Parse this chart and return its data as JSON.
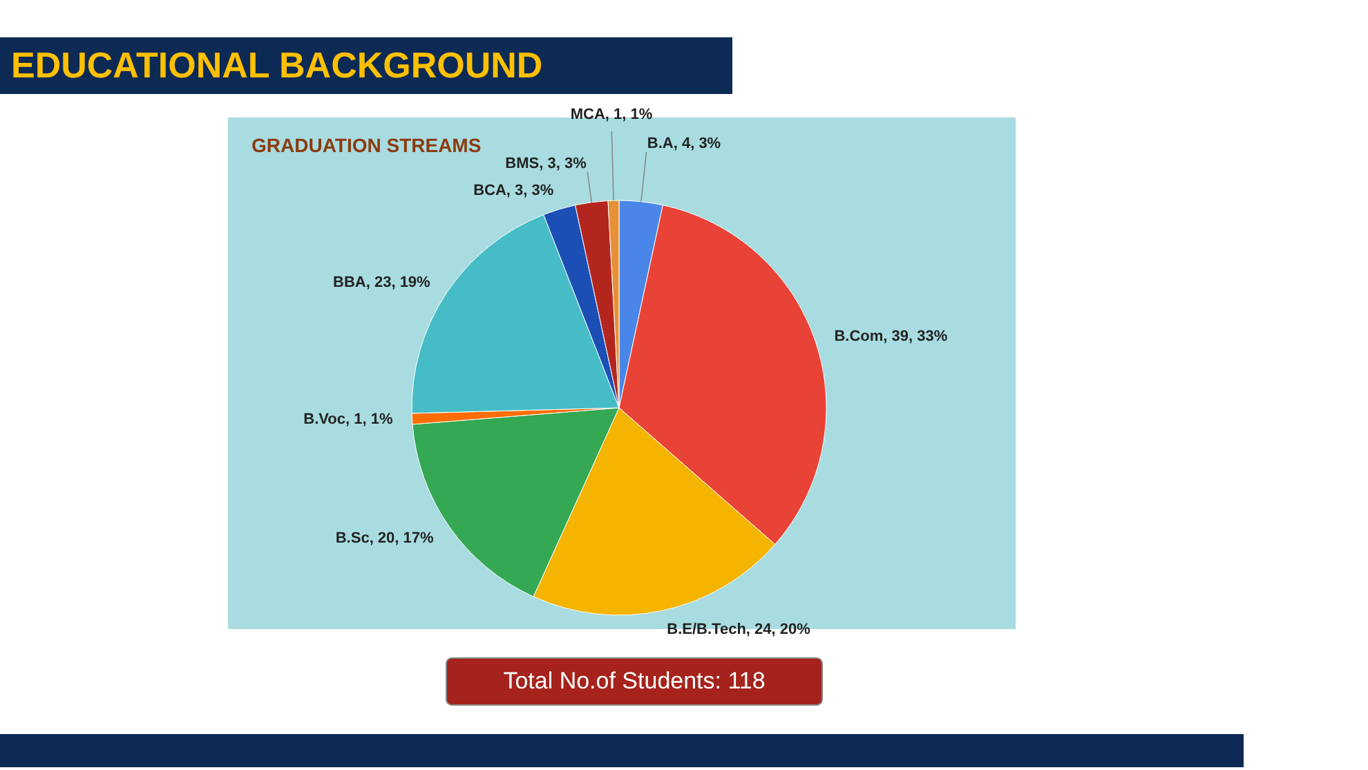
{
  "chart_data": {
    "type": "pie",
    "title": "EDUCATIONAL BACKGROUND",
    "subtitle": "GRADUATION STREAMS",
    "categories": [
      "B.A",
      "B.Com",
      "B.E/B.Tech",
      "B.Sc",
      "B.Voc",
      "BBA",
      "BCA",
      "BMS",
      "MCA"
    ],
    "values": [
      4,
      39,
      24,
      20,
      1,
      23,
      3,
      3,
      1
    ],
    "value_labels": [
      "4, 3%",
      "39, 33%",
      "24, 20%",
      "20, 17%",
      "1, 1%",
      "23, 19%",
      "3, 3%",
      "3, 3%",
      "1, 1%"
    ],
    "colors": [
      "#4a86e8",
      "#e84336",
      "#f4b400",
      "#34a853",
      "#ff6d01",
      "#46bdc6",
      "#1c4fb5",
      "#b3261e",
      "#e69138"
    ],
    "annotations": [
      "Total No.of Students: 118"
    ]
  }
}
